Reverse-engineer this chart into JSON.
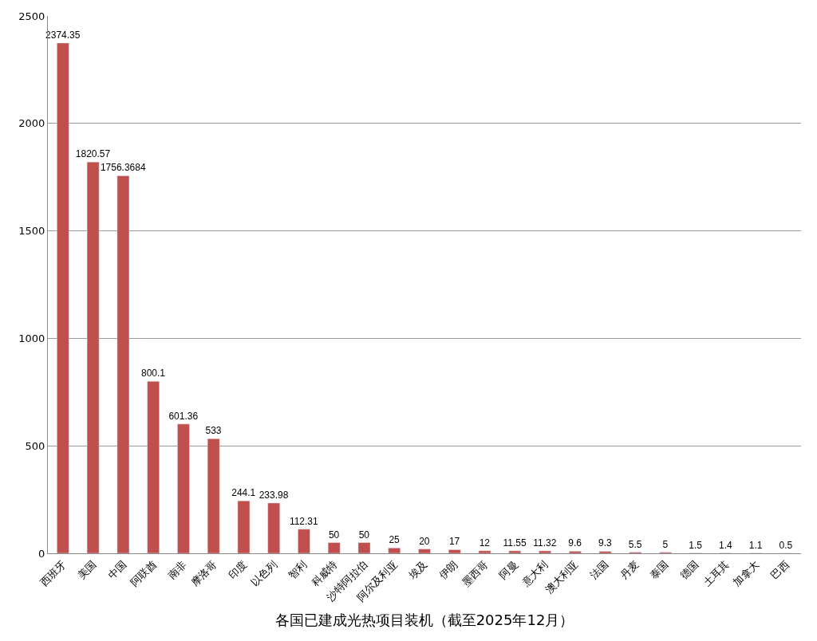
{
  "chart_data": {
    "type": "bar",
    "xlabel": "各国已建成光热项目装机（截至2025年12月）",
    "categories": [
      "西班牙",
      "美国",
      "中国",
      "阿联酋",
      "南非",
      "摩洛哥",
      "印度",
      "以色列",
      "智利",
      "科威特",
      "沙特阿拉伯",
      "阿尔及利亚",
      "埃及",
      "伊朗",
      "墨西哥",
      "阿曼",
      "意大利",
      "澳大利亚",
      "法国",
      "丹麦",
      "泰国",
      "德国",
      "土耳其",
      "加拿大",
      "巴西"
    ],
    "values": [
      2374.35,
      1820.57,
      1756.3684,
      800.1,
      601.36,
      533,
      244.1,
      233.98,
      112.31,
      50,
      50,
      25,
      20,
      17,
      12,
      11.55,
      11.32,
      9.6,
      9.3,
      5.5,
      5,
      1.5,
      1.4,
      1.1,
      0.5
    ],
    "color": "#c0504d",
    "ylim": [
      0,
      2500
    ],
    "yticks": [
      0,
      500,
      1000,
      1500,
      2000,
      2500
    ],
    "grid": "y",
    "data_labels": true
  }
}
